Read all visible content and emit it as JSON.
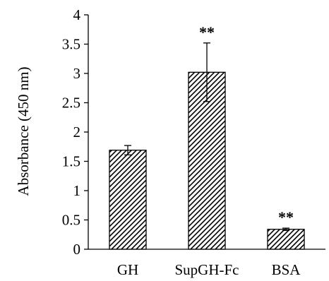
{
  "chart_data": {
    "type": "bar",
    "categories": [
      "GH",
      "SupGH-Fc",
      "BSA"
    ],
    "values": [
      1.69,
      3.02,
      0.34
    ],
    "errors": [
      0.08,
      0.5,
      0.02
    ],
    "annotations": [
      "",
      "**",
      "**"
    ],
    "title": "",
    "xlabel": "",
    "ylabel": "Absorbance (450 nm)",
    "ylim": [
      0,
      4
    ],
    "yticks": [
      0,
      0.5,
      1,
      1.5,
      2,
      2.5,
      3,
      3.5,
      4
    ],
    "ytick_labels": [
      "0",
      "0.5",
      "1",
      "1.5",
      "2",
      "2.5",
      "3",
      "3.5",
      "4"
    ],
    "grid": false,
    "bar_fill": "diagonal-hatch",
    "colors": {
      "stroke": "#000000",
      "background": "#ffffff"
    }
  }
}
